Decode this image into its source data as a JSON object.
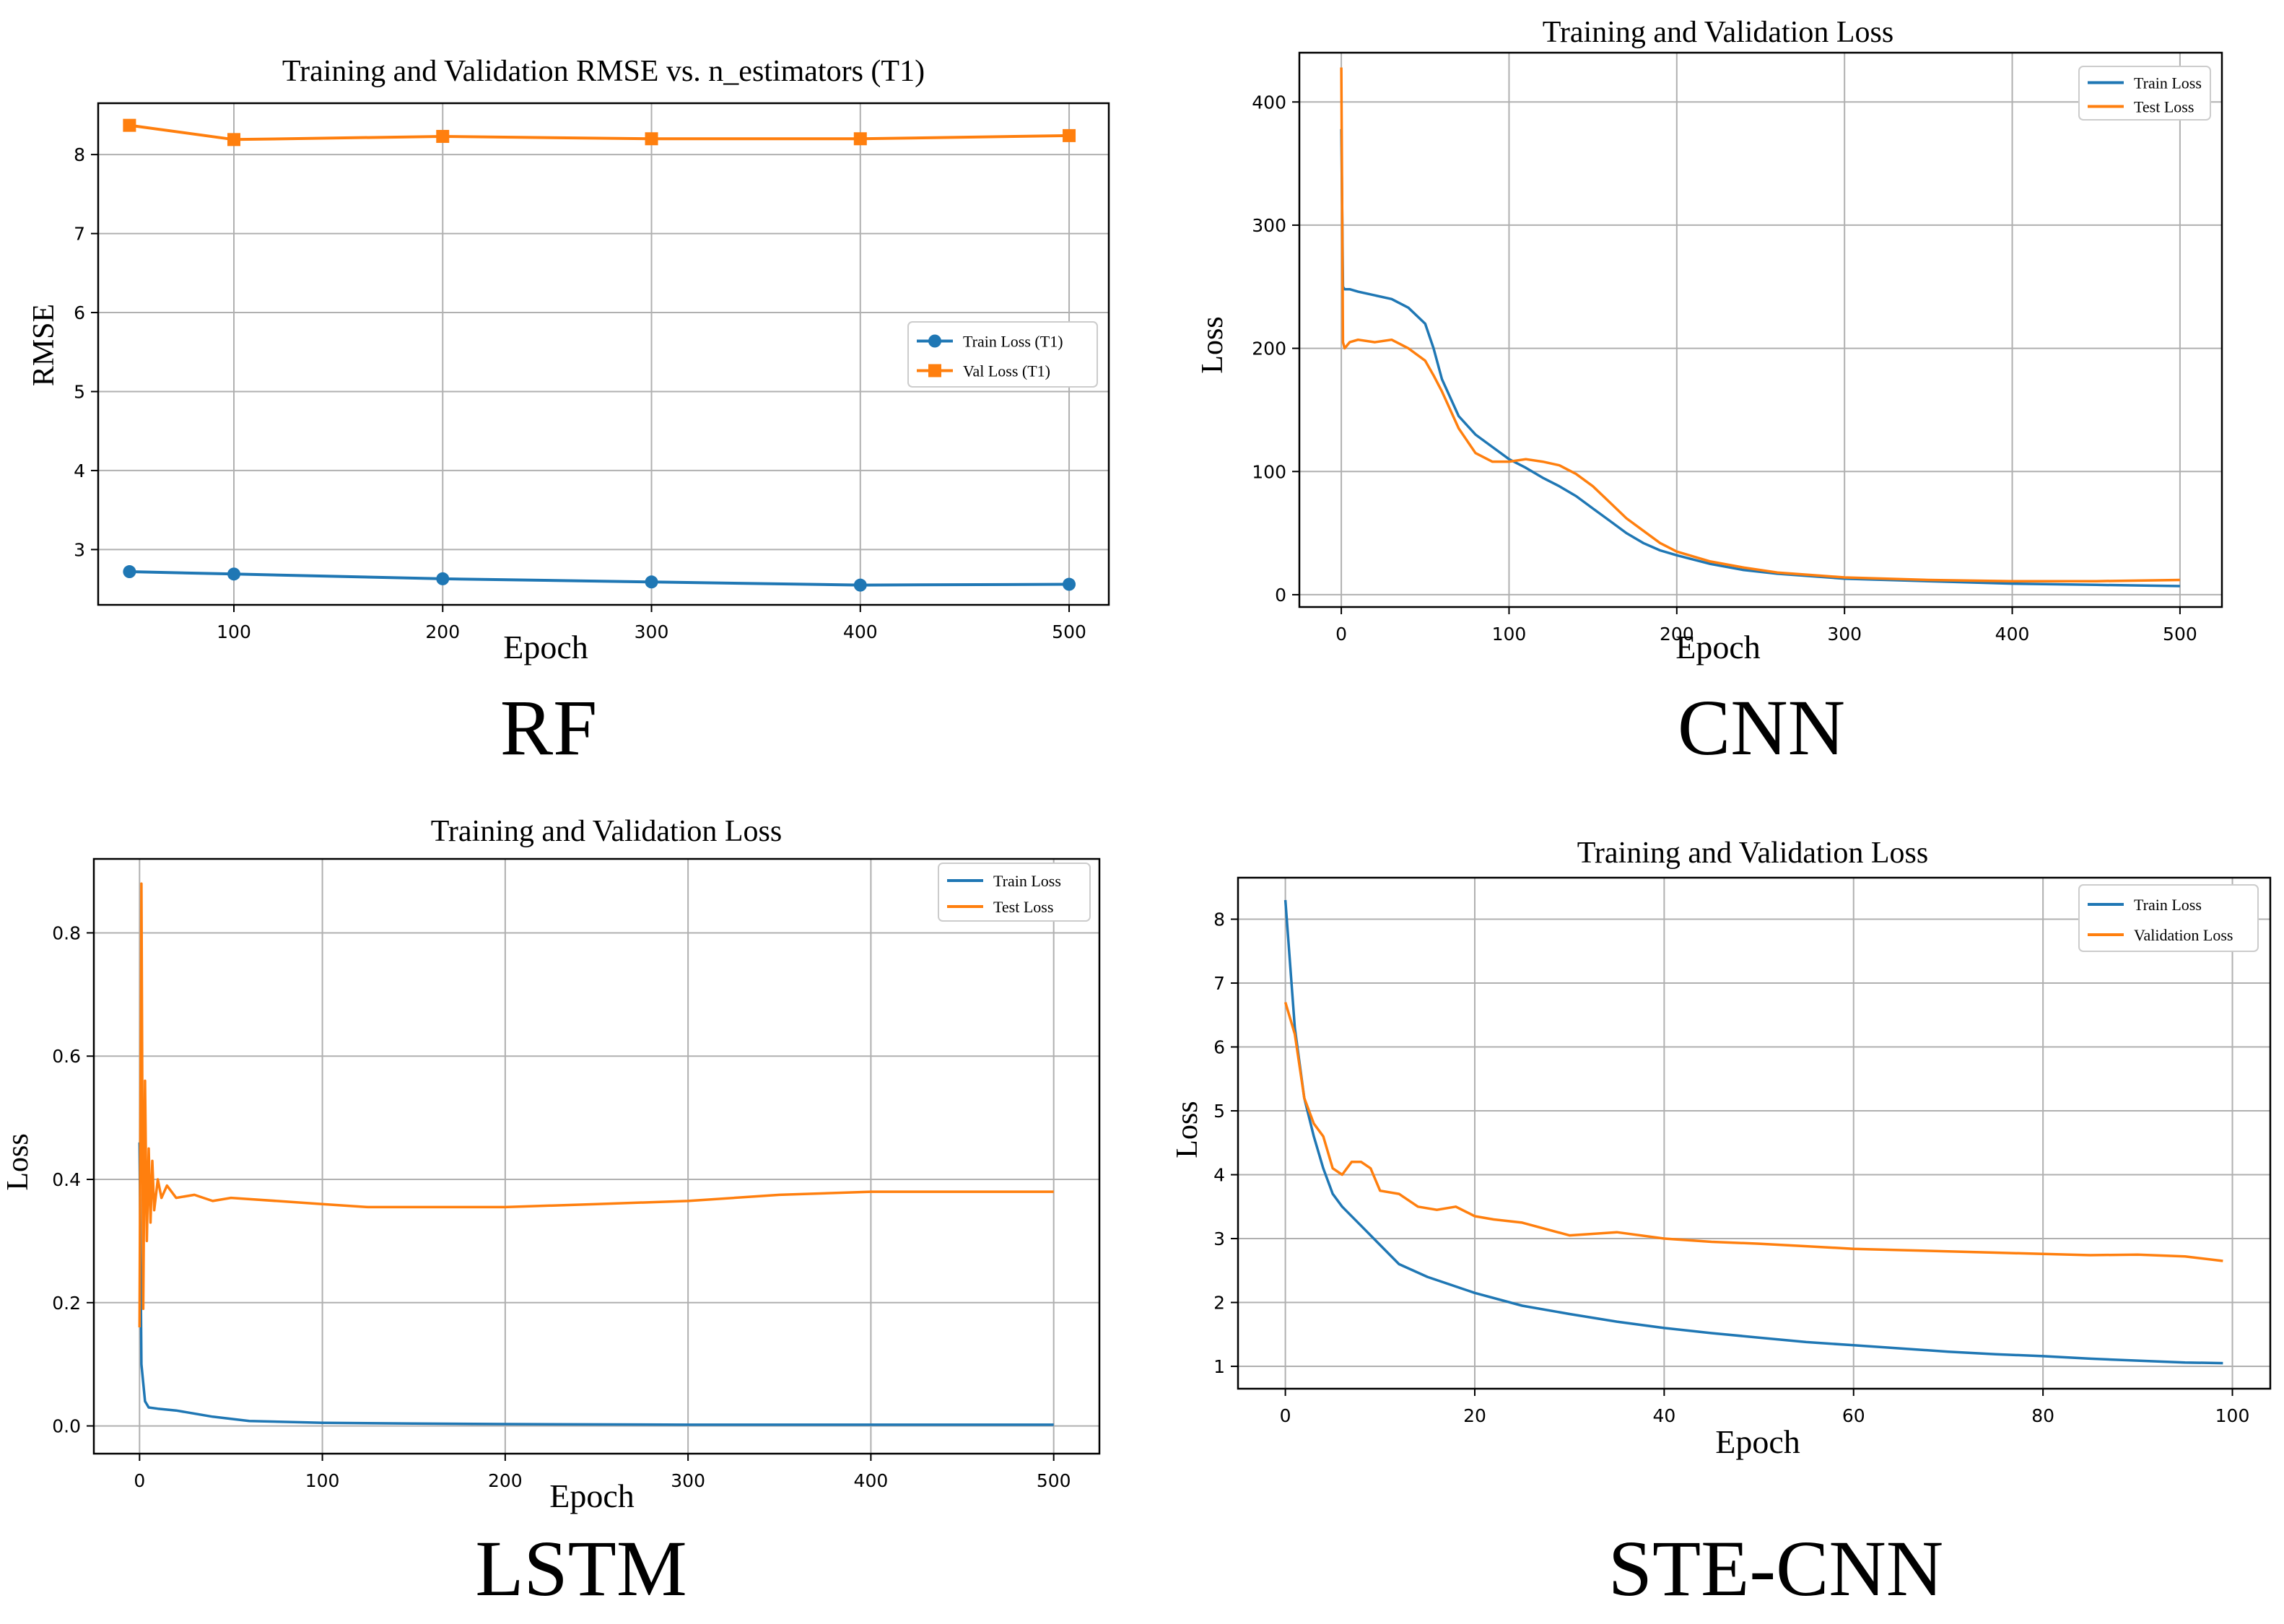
{
  "chart_data": [
    {
      "id": "rf",
      "type": "line",
      "panel_label": "RF",
      "title": "Training and Validation RMSE vs. n_estimators (T1)",
      "xlabel": "Epoch",
      "ylabel": "RMSE",
      "xlim": [
        35,
        519
      ],
      "ylim": [
        2.3,
        8.65
      ],
      "xticks": [
        100,
        200,
        300,
        400,
        500
      ],
      "yticks": [
        3,
        4,
        5,
        6,
        7,
        8
      ],
      "grid": true,
      "legend_position": "center-right",
      "series": [
        {
          "name": "Train Loss (T1)",
          "color": "#1f77b4",
          "marker": "circle",
          "x": [
            50,
            100,
            200,
            300,
            400,
            500
          ],
          "y": [
            2.72,
            2.69,
            2.63,
            2.59,
            2.55,
            2.56
          ]
        },
        {
          "name": "Val Loss (T1)",
          "color": "#ff7f0e",
          "marker": "square",
          "x": [
            50,
            100,
            200,
            300,
            400,
            500
          ],
          "y": [
            8.37,
            8.19,
            8.23,
            8.2,
            8.2,
            8.24
          ]
        }
      ]
    },
    {
      "id": "cnn",
      "type": "line",
      "panel_label": "CNN",
      "title": "Training and Validation Loss",
      "xlabel": "Epoch",
      "ylabel": "Loss",
      "xlim": [
        -25,
        525
      ],
      "ylim": [
        -10,
        440
      ],
      "xticks": [
        0,
        100,
        200,
        300,
        400,
        500
      ],
      "yticks": [
        0,
        100,
        200,
        300,
        400
      ],
      "grid": true,
      "legend_position": "top-right",
      "series": [
        {
          "name": "Train Loss",
          "color": "#1f77b4",
          "x": [
            0,
            1,
            2,
            5,
            10,
            20,
            30,
            40,
            50,
            55,
            60,
            70,
            80,
            90,
            100,
            110,
            120,
            130,
            140,
            150,
            160,
            170,
            180,
            190,
            200,
            220,
            240,
            260,
            280,
            300,
            350,
            400,
            450,
            500
          ],
          "y": [
            378,
            250,
            248,
            248,
            246,
            243,
            240,
            233,
            220,
            200,
            175,
            145,
            130,
            120,
            110,
            103,
            95,
            88,
            80,
            70,
            60,
            50,
            42,
            36,
            32,
            25,
            20,
            17,
            15,
            13,
            11,
            9,
            8,
            7
          ]
        },
        {
          "name": "Test Loss",
          "color": "#ff7f0e",
          "x": [
            0,
            1,
            2,
            5,
            10,
            20,
            30,
            40,
            50,
            55,
            60,
            70,
            80,
            90,
            100,
            110,
            120,
            130,
            140,
            150,
            160,
            170,
            180,
            190,
            200,
            220,
            240,
            260,
            280,
            300,
            350,
            400,
            450,
            500
          ],
          "y": [
            428,
            205,
            200,
            205,
            207,
            205,
            207,
            200,
            190,
            178,
            165,
            135,
            115,
            108,
            108,
            110,
            108,
            105,
            98,
            88,
            75,
            62,
            52,
            42,
            35,
            27,
            22,
            18,
            16,
            14,
            12,
            11,
            11,
            12
          ]
        }
      ]
    },
    {
      "id": "lstm",
      "type": "line",
      "panel_label": "LSTM",
      "title": "Training and Validation Loss",
      "xlabel": "Epoch",
      "ylabel": "Loss",
      "xlim": [
        -25,
        525
      ],
      "ylim": [
        -0.045,
        0.92
      ],
      "xticks": [
        0,
        100,
        200,
        300,
        400,
        500
      ],
      "yticks": [
        0.0,
        0.2,
        0.4,
        0.6,
        0.8
      ],
      "ytick_labels": [
        "0.0",
        "0.2",
        "0.4",
        "0.6",
        "0.8"
      ],
      "grid": true,
      "legend_position": "top-right",
      "series": [
        {
          "name": "Train Loss",
          "color": "#1f77b4",
          "x": [
            0,
            1,
            2,
            3,
            5,
            10,
            20,
            40,
            60,
            100,
            150,
            200,
            300,
            400,
            500
          ],
          "y": [
            0.46,
            0.1,
            0.07,
            0.04,
            0.03,
            0.028,
            0.025,
            0.015,
            0.008,
            0.005,
            0.004,
            0.003,
            0.002,
            0.002,
            0.002
          ]
        },
        {
          "name": "Test Loss",
          "color": "#ff7f0e",
          "x": [
            0,
            1,
            2,
            3,
            4,
            5,
            6,
            7,
            8,
            10,
            12,
            15,
            20,
            30,
            40,
            50,
            75,
            100,
            125,
            150,
            175,
            200,
            250,
            300,
            350,
            400,
            450,
            500
          ],
          "y": [
            0.16,
            0.88,
            0.19,
            0.56,
            0.3,
            0.45,
            0.33,
            0.43,
            0.35,
            0.4,
            0.37,
            0.39,
            0.37,
            0.375,
            0.365,
            0.37,
            0.365,
            0.36,
            0.355,
            0.355,
            0.355,
            0.355,
            0.36,
            0.365,
            0.375,
            0.38,
            0.38,
            0.38
          ]
        }
      ]
    },
    {
      "id": "ste",
      "type": "line",
      "panel_label": "STE-CNN",
      "title": "Training and Validation Loss",
      "xlabel": "Epoch",
      "ylabel": "Loss",
      "xlim": [
        -5,
        104
      ],
      "ylim": [
        0.65,
        8.65
      ],
      "xticks": [
        0,
        20,
        40,
        60,
        80,
        100
      ],
      "yticks": [
        1,
        2,
        3,
        4,
        5,
        6,
        7,
        8
      ],
      "grid": true,
      "legend_position": "top-right",
      "series": [
        {
          "name": "Train Loss",
          "color": "#1f77b4",
          "x": [
            0,
            1,
            2,
            3,
            4,
            5,
            6,
            8,
            10,
            12,
            15,
            20,
            25,
            30,
            35,
            40,
            45,
            50,
            55,
            60,
            65,
            70,
            75,
            80,
            85,
            90,
            95,
            99
          ],
          "y": [
            8.3,
            6.3,
            5.2,
            4.6,
            4.1,
            3.7,
            3.5,
            3.2,
            2.9,
            2.6,
            2.4,
            2.15,
            1.95,
            1.82,
            1.7,
            1.6,
            1.52,
            1.45,
            1.38,
            1.33,
            1.28,
            1.23,
            1.19,
            1.16,
            1.12,
            1.09,
            1.06,
            1.05
          ]
        },
        {
          "name": "Validation Loss",
          "color": "#ff7f0e",
          "x": [
            0,
            1,
            2,
            3,
            4,
            5,
            6,
            7,
            8,
            9,
            10,
            12,
            14,
            16,
            18,
            20,
            22,
            25,
            30,
            35,
            40,
            45,
            50,
            55,
            60,
            65,
            70,
            75,
            80,
            85,
            90,
            95,
            99
          ],
          "y": [
            6.7,
            6.2,
            5.2,
            4.8,
            4.6,
            4.1,
            4.0,
            4.2,
            4.2,
            4.1,
            3.75,
            3.7,
            3.5,
            3.45,
            3.5,
            3.35,
            3.3,
            3.25,
            3.05,
            3.1,
            3.0,
            2.95,
            2.92,
            2.88,
            2.84,
            2.82,
            2.8,
            2.78,
            2.76,
            2.74,
            2.75,
            2.72,
            2.65
          ]
        }
      ]
    }
  ]
}
